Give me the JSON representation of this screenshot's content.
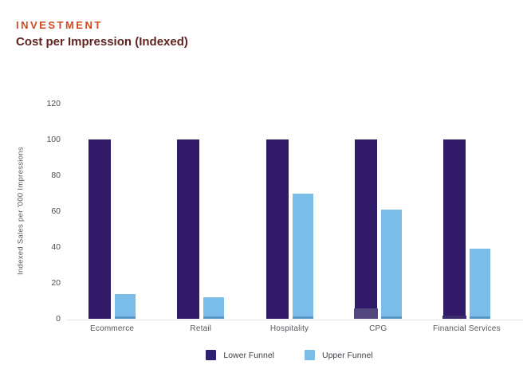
{
  "header": {
    "eyebrow": "INVESTMENT",
    "title": "Cost per Impression (Indexed)"
  },
  "colors": {
    "eyebrow_text": "#d04b22",
    "title_text": "#5f2320",
    "lower_funnel": "#311b69",
    "upper_funnel": "#7bbde9",
    "axis_line": "#e3e3e3",
    "tick_text": "#4b4f54"
  },
  "chart_data": {
    "type": "bar",
    "categories": [
      "Ecommerce",
      "Retail",
      "Hospitality",
      "CPG",
      "Financial Services"
    ],
    "series": [
      {
        "name": "Lower Funnel",
        "color": "#311b69",
        "values": [
          100,
          100,
          100,
          100,
          100
        ]
      },
      {
        "name": "Upper Funnel",
        "color": "#7bbde9",
        "values": [
          14,
          12,
          70,
          61,
          39
        ]
      }
    ],
    "title": "Cost per Impression (Indexed)",
    "xlabel": "",
    "ylabel": "Indexed Sales per '000 Impressions",
    "yticks": [
      0,
      20,
      40,
      60,
      80,
      100,
      120
    ],
    "ylim": [
      0,
      120
    ],
    "grid": false,
    "legend_position": "bottom",
    "baseline_artifacts": [
      {
        "category_index": 3,
        "value": 6,
        "color": "#52477e"
      },
      {
        "category_index": 4,
        "value": 2,
        "color": "#3a2d6e"
      }
    ]
  }
}
